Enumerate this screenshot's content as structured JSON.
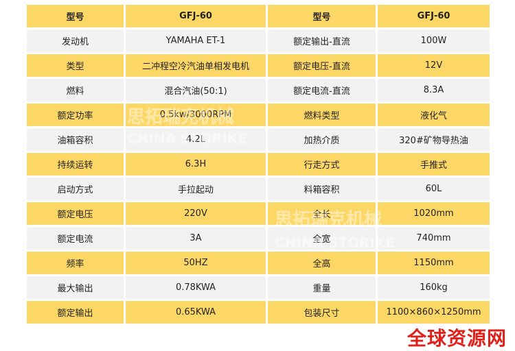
{
  "rows": [
    [
      "型号",
      "GFJ-60",
      "型号",
      "GFJ-60"
    ],
    [
      "发动机",
      "YAMAHA ET-1",
      "额定输出-直流",
      "100W"
    ],
    [
      "类型",
      "二冲程空冷汽油单相发电机",
      "额定电压-直流",
      "12V"
    ],
    [
      "燃料",
      "混合汽油(50:1)",
      "额定电流-直流",
      "8.3A"
    ],
    [
      "额定功率",
      "0.5kw/3000RPM",
      "燃料类型",
      "液化气"
    ],
    [
      "油箱容积",
      "4.2L",
      "加热介质",
      "320#矿物导热油"
    ],
    [
      "持续运转",
      "6.3H",
      "行走方式",
      "手推式"
    ],
    [
      "启动方式",
      "手拉起动",
      "料箱容积",
      "60L"
    ],
    [
      "额定电压",
      "220V",
      "全长",
      "1020mm"
    ],
    [
      "额定电流",
      "3A",
      "全宽",
      "740mm"
    ],
    [
      "频率",
      "50HZ",
      "全高",
      "1150mm"
    ],
    [
      "最大输出",
      "0.78KWA",
      "重量",
      "160kg"
    ],
    [
      "额定输出",
      "0.65KWA",
      "包装尺寸",
      "1100×860×1250mm"
    ]
  ],
  "watermarks": {
    "brand_cn": "思拓瑞克机械",
    "brand_en": "CHINA STORIKE",
    "site": "全球资源网"
  },
  "colors": {
    "yellow": "#FDD766",
    "grey": "#F2F2F2",
    "watermark_red": "#E0211B"
  }
}
